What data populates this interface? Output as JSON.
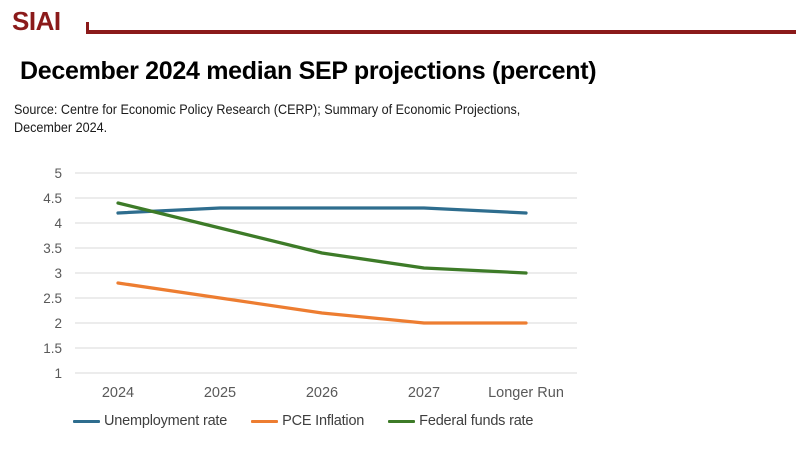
{
  "header": {
    "logo_text": "SIAI"
  },
  "title": "December 2024 median SEP projections (percent)",
  "source": {
    "line1": "Source: Centre for Economic Policy Research (CERP); Summary of Economic Projections,",
    "line2": "December 2024."
  },
  "colors": {
    "brand_red": "#8B1A1A",
    "grid_line": "#D9D9D9",
    "axis_label": "#595959",
    "legend_text": "#3F3F3F"
  },
  "chart_data": {
    "type": "line",
    "title": "December 2024 median SEP projections (percent)",
    "categories": [
      "2024",
      "2025",
      "2026",
      "2027",
      "Longer Run"
    ],
    "series": [
      {
        "name": "Unemployment rate",
        "color": "#2E6D8E",
        "values": [
          4.2,
          4.3,
          4.3,
          4.3,
          4.2
        ]
      },
      {
        "name": "PCE Inflation",
        "color": "#ED7D31",
        "values": [
          2.8,
          2.5,
          2.2,
          2.0,
          2.0
        ]
      },
      {
        "name": "Federal funds rate",
        "color": "#3D7B28",
        "values": [
          4.4,
          3.9,
          3.4,
          3.1,
          3.0
        ]
      }
    ],
    "xlabel": "",
    "ylabel": "",
    "ylim": [
      1,
      5
    ],
    "ytick_step": 0.5,
    "grid": true,
    "legend_position": "bottom"
  }
}
